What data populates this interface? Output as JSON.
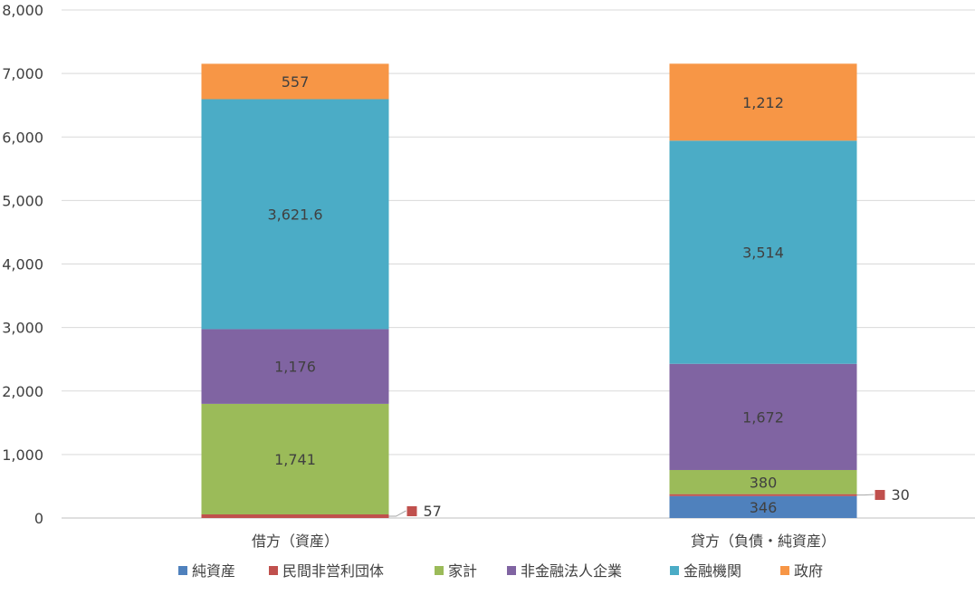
{
  "chart_data": {
    "type": "bar",
    "stacked": true,
    "title": "",
    "xlabel": "",
    "ylabel": "",
    "categories": [
      "借方（資産）",
      "貸方（負債・純資産）"
    ],
    "ylim": [
      0,
      8000
    ],
    "yticks": [
      "0",
      "1,000",
      "2,000",
      "3,000",
      "4,000",
      "5,000",
      "6,000",
      "7,000",
      "8,000"
    ],
    "grid": true,
    "legend_position": "bottom",
    "series": [
      {
        "name": "純資産",
        "color": "#4f81bd",
        "values": [
          0,
          346
        ],
        "labels": [
          "",
          "346"
        ]
      },
      {
        "name": "民間非営利団体",
        "color": "#c0504d",
        "values": [
          57,
          30
        ],
        "labels": [
          "57",
          "30"
        ],
        "callout": true
      },
      {
        "name": "家計",
        "color": "#9bbb59",
        "values": [
          1741,
          380
        ],
        "labels": [
          "1,741",
          "380"
        ]
      },
      {
        "name": "非金融法人企業",
        "color": "#8064a2",
        "values": [
          1176,
          1672
        ],
        "labels": [
          "1,176",
          "1,672"
        ]
      },
      {
        "name": "金融機関",
        "color": "#4bacc6",
        "values": [
          3621.6,
          3514
        ],
        "labels": [
          "3,621.6",
          "3,514"
        ]
      },
      {
        "name": "政府",
        "color": "#f79646",
        "values": [
          557,
          1212
        ],
        "labels": [
          "557",
          "1,212"
        ]
      }
    ]
  }
}
